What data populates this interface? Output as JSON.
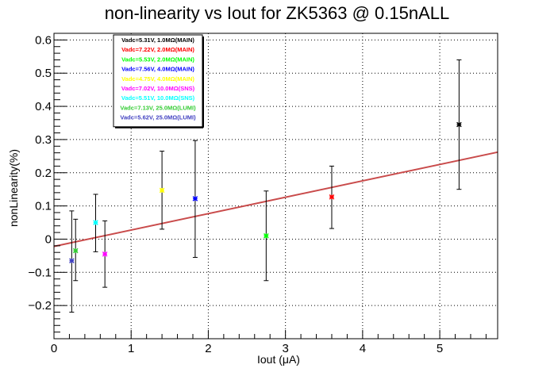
{
  "chart_data": {
    "type": "scatter",
    "title": "non-linearity vs Iout for ZK5363 @ 0.15nALL",
    "xlabel": "Iout (μA)",
    "ylabel": "nonLinearity(%)",
    "xlim": [
      0,
      5.75
    ],
    "ylim": [
      -0.3,
      0.62
    ],
    "x_ticks": [
      0,
      1,
      2,
      3,
      4,
      5
    ],
    "y_ticks": [
      -0.2,
      -0.1,
      0,
      0.1,
      0.2,
      0.3,
      0.4,
      0.5,
      0.6
    ],
    "x_tick_labels": [
      "0",
      "1",
      "2",
      "3",
      "4",
      "5"
    ],
    "y_tick_labels": [
      "−0.2",
      "−0.1",
      "0",
      "0.1",
      "0.2",
      "0.3",
      "0.4",
      "0.5",
      "0.6"
    ],
    "grid": true,
    "legend_position": "top-left",
    "series": [
      {
        "name": "Vadc=5.31V, 1.0MΩ(MAIN)",
        "color": "#000000",
        "x": 5.25,
        "y": 0.345,
        "y_low": 0.15,
        "y_high": 0.54
      },
      {
        "name": "Vadc=7.22V, 2.0MΩ(MAIN)",
        "color": "#ff0000",
        "x": 3.6,
        "y": 0.127,
        "y_low": 0.032,
        "y_high": 0.22
      },
      {
        "name": "Vadc=5.53V, 2.0MΩ(MAIN)",
        "color": "#00ff00",
        "x": 2.75,
        "y": 0.01,
        "y_low": -0.125,
        "y_high": 0.145
      },
      {
        "name": "Vadc=7.56V, 4.0MΩ(MAIN)",
        "color": "#0000ff",
        "x": 1.83,
        "y": 0.122,
        "y_low": -0.055,
        "y_high": 0.297
      },
      {
        "name": "Vadc=4.75V, 4.0MΩ(MAIN)",
        "color": "#ffff00",
        "x": 1.4,
        "y": 0.147,
        "y_low": 0.03,
        "y_high": 0.265
      },
      {
        "name": "Vadc=7.02V, 10.0MΩ(SNS)",
        "color": "#ff00ff",
        "x": 0.66,
        "y": -0.045,
        "y_low": -0.145,
        "y_high": 0.055
      },
      {
        "name": "Vadc=5.51V, 10.0MΩ(SNS)",
        "color": "#00ffff",
        "x": 0.54,
        "y": 0.05,
        "y_low": -0.038,
        "y_high": 0.135
      },
      {
        "name": "Vadc=7.13V, 25.0MΩ(LUMI)",
        "color": "#33cc33",
        "x": 0.28,
        "y": -0.035,
        "y_low": -0.125,
        "y_high": 0.06
      },
      {
        "name": "Vadc=5.62V, 25.0MΩ(LUMI)",
        "color": "#4040c0",
        "x": 0.23,
        "y": -0.065,
        "y_low": -0.22,
        "y_high": 0.085
      }
    ],
    "fit_line": {
      "color": "#c94b4b",
      "x": [
        0,
        5.75
      ],
      "y": [
        -0.022,
        0.262
      ]
    }
  }
}
